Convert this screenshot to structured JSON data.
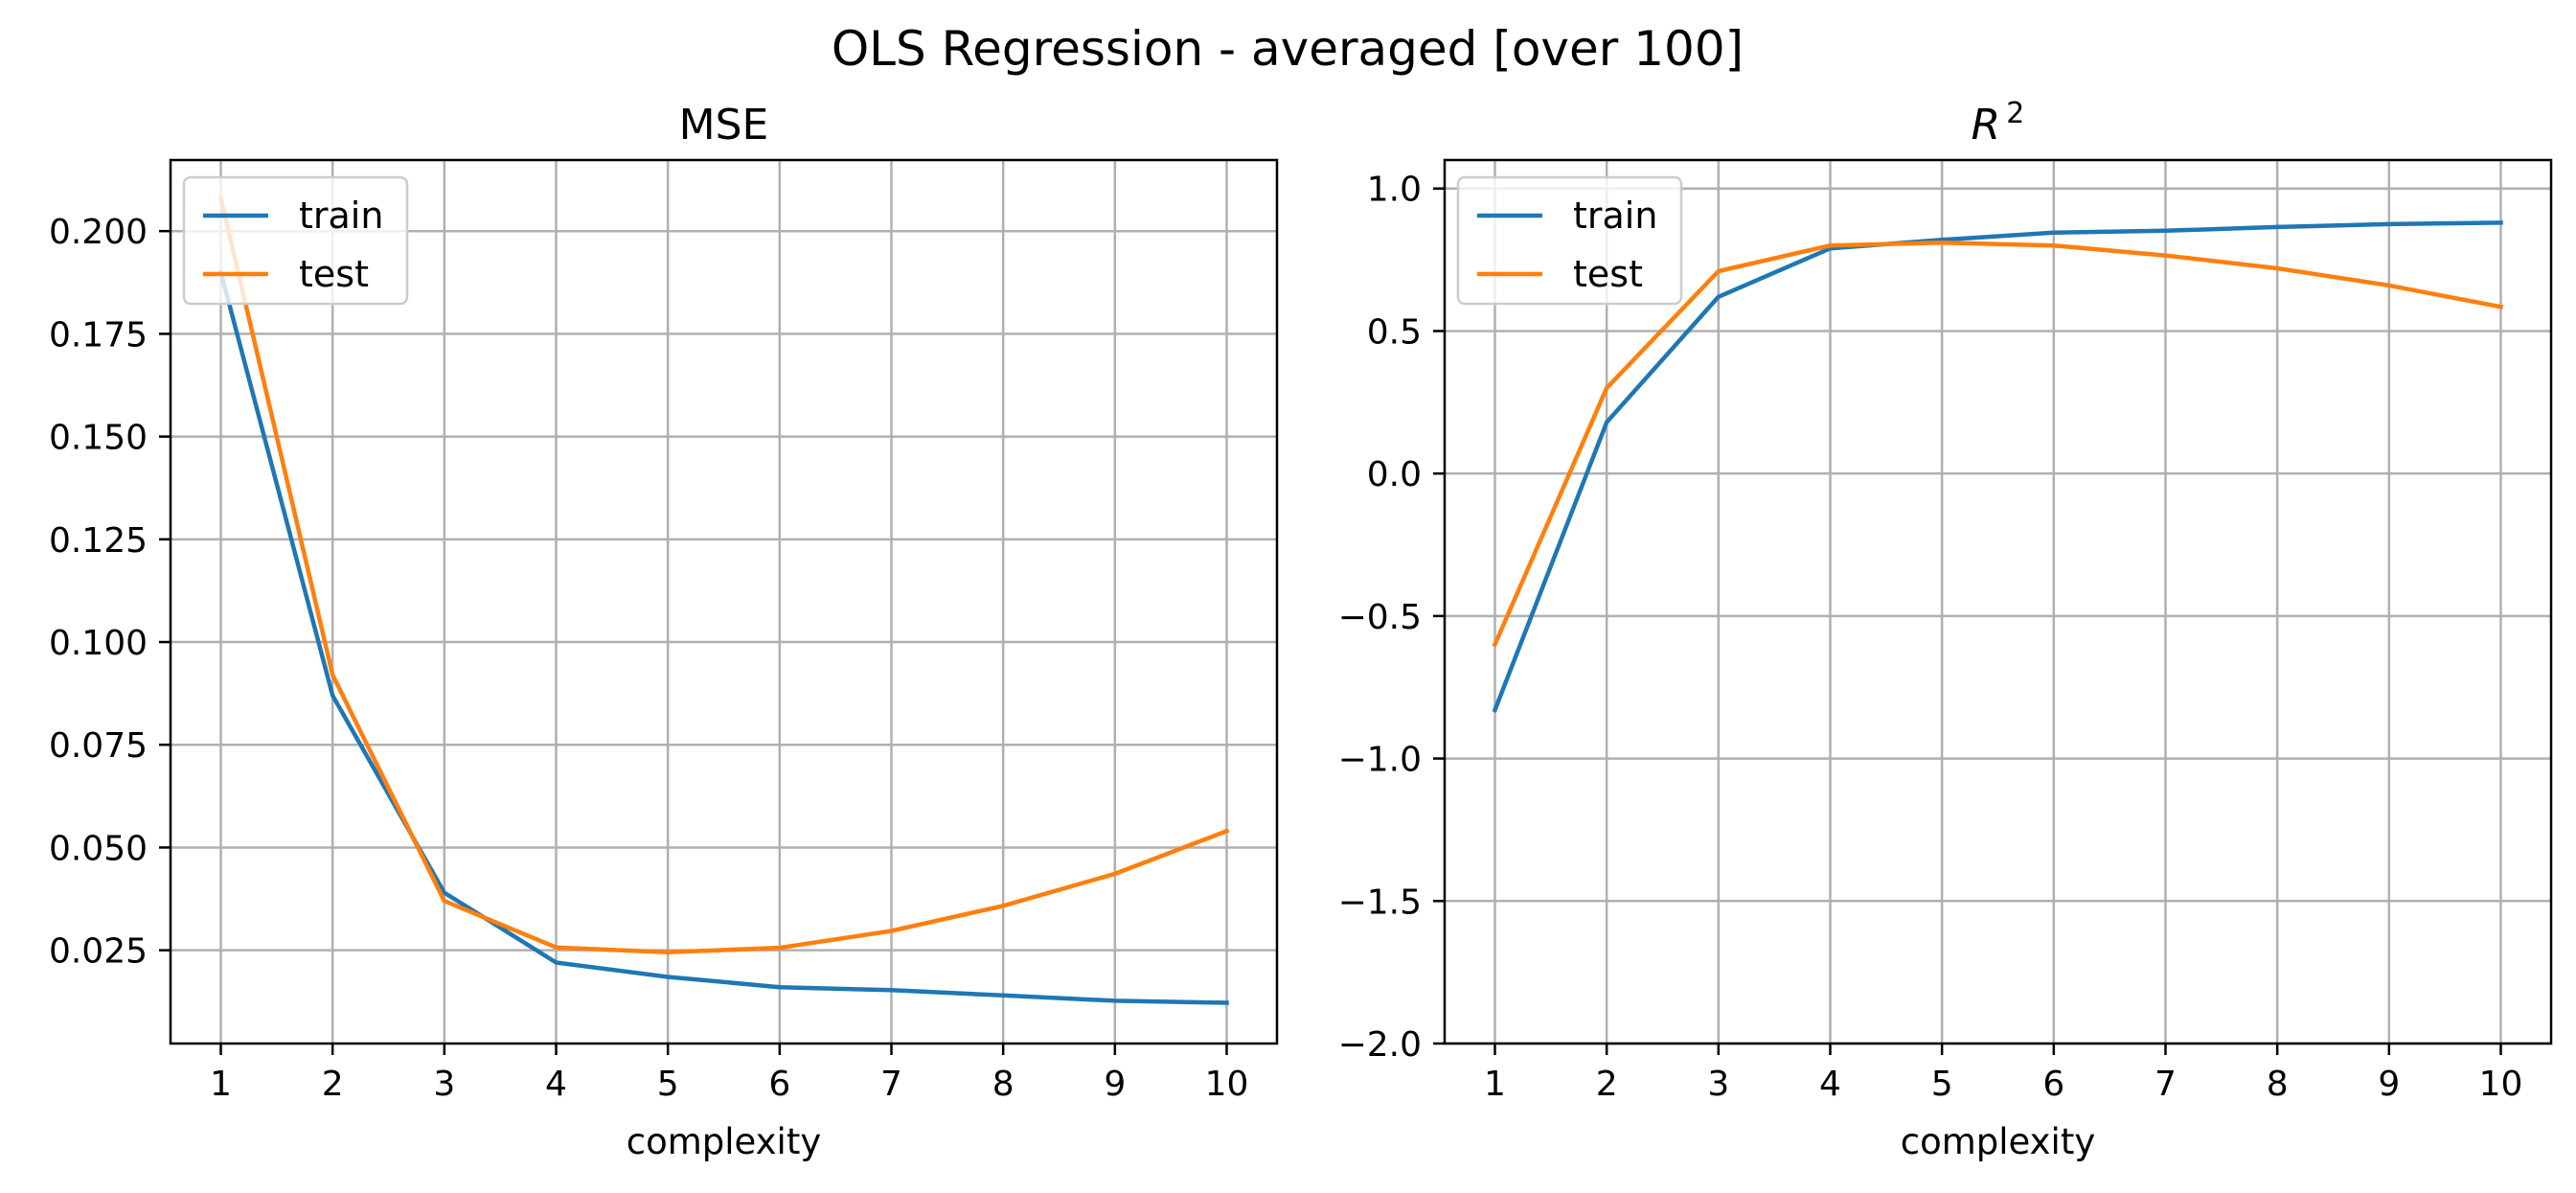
{
  "figure": {
    "suptitle": "OLS Regression - averaged [over 100]"
  },
  "colors": {
    "train": "#1f77b4",
    "test": "#ff7f0e",
    "grid": "#b0b0b0"
  },
  "chart_data": [
    {
      "type": "line",
      "title": "MSE",
      "xlabel": "complexity",
      "ylabel": "",
      "x": [
        1,
        2,
        3,
        4,
        5,
        6,
        7,
        8,
        9,
        10
      ],
      "xticks": [
        "1",
        "2",
        "3",
        "4",
        "5",
        "6",
        "7",
        "8",
        "9",
        "10"
      ],
      "xlim": [
        0.55,
        10.45
      ],
      "ylim": [
        0.0023,
        0.2173
      ],
      "yticks": [
        "0.025",
        "0.050",
        "0.075",
        "0.100",
        "0.125",
        "0.150",
        "0.175",
        "0.200"
      ],
      "ytick_values": [
        0.025,
        0.05,
        0.075,
        0.1,
        0.125,
        0.15,
        0.175,
        0.2
      ],
      "grid": true,
      "legend_position": "upper left",
      "series": [
        {
          "name": "train",
          "values": [
            0.19,
            0.087,
            0.039,
            0.022,
            0.0185,
            0.016,
            0.0153,
            0.014,
            0.0127,
            0.0122
          ]
        },
        {
          "name": "test",
          "values": [
            0.208,
            0.092,
            0.037,
            0.0257,
            0.0245,
            0.0256,
            0.0297,
            0.0358,
            0.0436,
            0.054
          ]
        }
      ]
    },
    {
      "type": "line",
      "title": "R²",
      "title_base": "R",
      "title_sup": "2",
      "xlabel": "complexity",
      "ylabel": "",
      "x": [
        1,
        2,
        3,
        4,
        5,
        6,
        7,
        8,
        9,
        10
      ],
      "xticks": [
        "1",
        "2",
        "3",
        "4",
        "5",
        "6",
        "7",
        "8",
        "9",
        "10"
      ],
      "xlim": [
        0.55,
        10.45
      ],
      "ylim": [
        -2.0,
        1.1
      ],
      "yticks": [
        "−2.0",
        "−1.5",
        "−1.0",
        "−0.5",
        "0.0",
        "0.5",
        "1.0"
      ],
      "ytick_values": [
        -2.0,
        -1.5,
        -1.0,
        -0.5,
        0.0,
        0.5,
        1.0
      ],
      "grid": true,
      "legend_position": "upper left",
      "series": [
        {
          "name": "train",
          "values": [
            -0.83,
            0.18,
            0.62,
            0.79,
            0.82,
            0.845,
            0.852,
            0.865,
            0.875,
            0.88
          ]
        },
        {
          "name": "test",
          "values": [
            -0.6,
            0.3,
            0.71,
            0.8,
            0.81,
            0.8,
            0.765,
            0.72,
            0.66,
            0.585
          ]
        }
      ]
    }
  ]
}
